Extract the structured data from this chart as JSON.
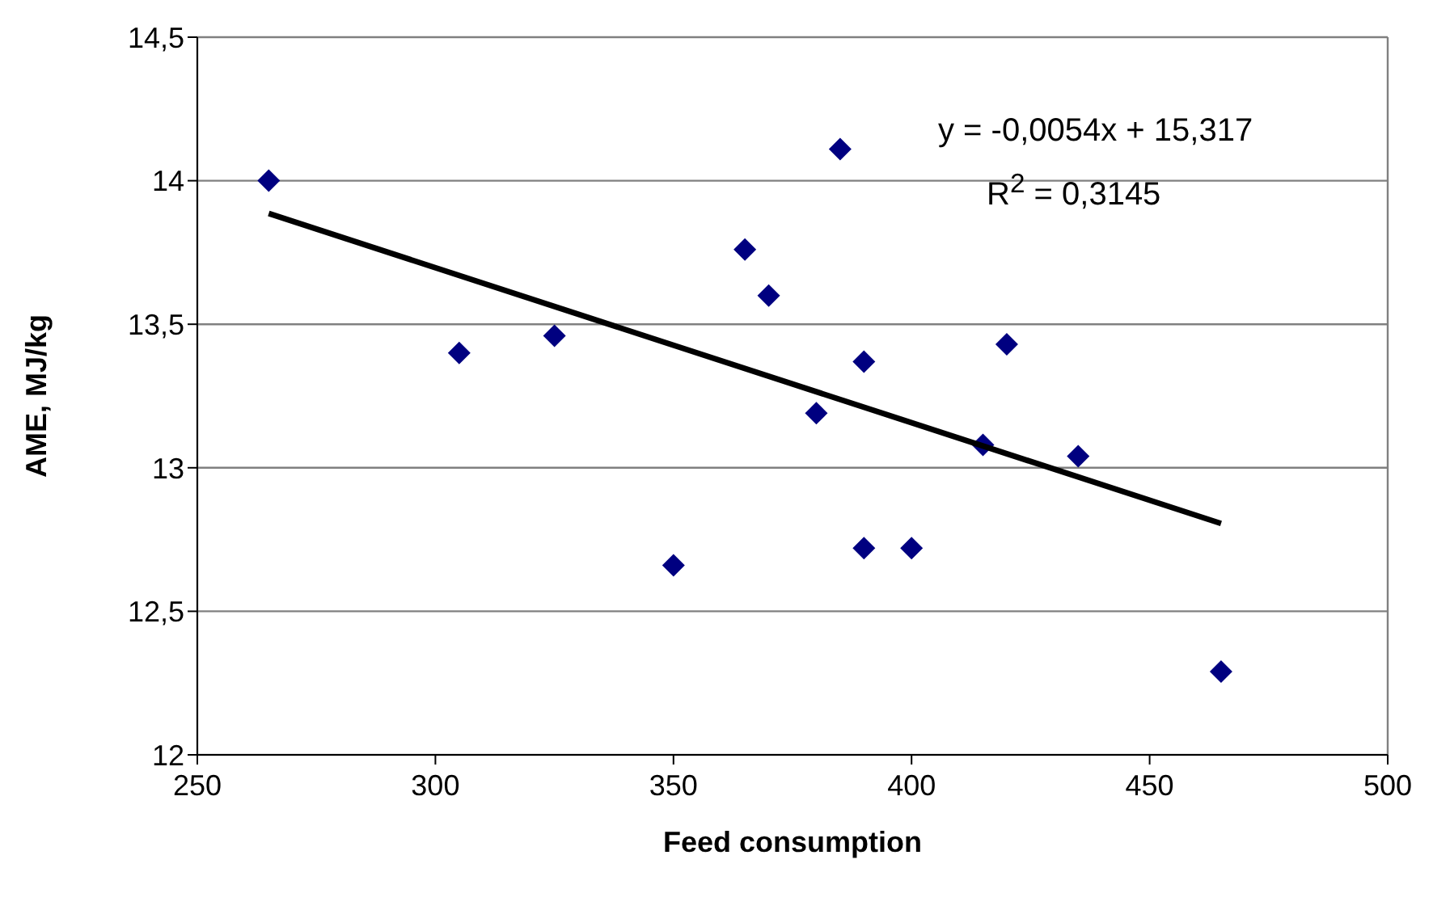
{
  "chart_data": {
    "type": "scatter",
    "xlabel": "Feed consumption",
    "ylabel": "AME, MJ/kg",
    "series": [
      {
        "type": "scatter",
        "color": "#000080",
        "marker": "diamond",
        "x": [
          265,
          305,
          325,
          350,
          365,
          370,
          380,
          385,
          390,
          390,
          400,
          415,
          420,
          435,
          465
        ],
        "values": [
          14.0,
          13.4,
          13.46,
          12.66,
          13.76,
          13.6,
          13.19,
          14.11,
          13.37,
          12.72,
          12.72,
          13.08,
          13.43,
          13.04,
          12.29
        ]
      },
      {
        "type": "line",
        "color": "#000000",
        "x": [
          265,
          465
        ],
        "values": [
          13.886,
          12.806
        ]
      }
    ],
    "xlim": [
      250,
      500
    ],
    "xticks": [
      250,
      300,
      350,
      400,
      450,
      500
    ],
    "ylim": [
      12,
      14.5
    ],
    "yticks": [
      12,
      {
        "value": 12.5,
        "label": "12,5"
      },
      13,
      {
        "value": 13.5,
        "label": "13,5"
      },
      14,
      {
        "value": 14.5,
        "label": "14,5"
      }
    ],
    "grid": "y",
    "annotations": [
      "y = -0,0054x + 15,317",
      "R$^{2}$ = 0,3145"
    ]
  }
}
